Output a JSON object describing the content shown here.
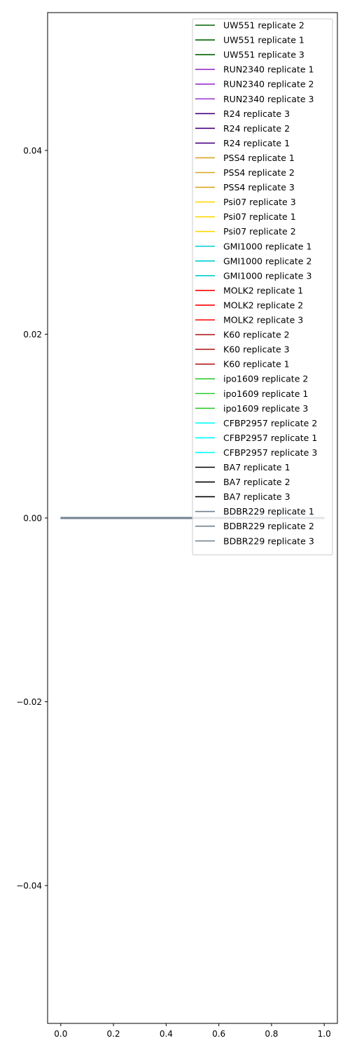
{
  "chart_data": {
    "type": "line",
    "title": "",
    "xlabel": "",
    "ylabel": "",
    "xlim": [
      -0.05,
      1.05
    ],
    "ylim": [
      -0.055,
      0.055
    ],
    "x_ticks": [
      {
        "value": 0.0,
        "label": "0.0"
      },
      {
        "value": 0.2,
        "label": "0.2"
      },
      {
        "value": 0.4,
        "label": "0.4"
      },
      {
        "value": 0.6,
        "label": "0.6"
      },
      {
        "value": 0.8,
        "label": "0.8"
      },
      {
        "value": 1.0,
        "label": "1.0"
      }
    ],
    "y_ticks": [
      {
        "value": -0.04,
        "label": "−0.04"
      },
      {
        "value": -0.02,
        "label": "−0.02"
      },
      {
        "value": 0.0,
        "label": "0.00"
      },
      {
        "value": 0.02,
        "label": "0.02"
      },
      {
        "value": 0.04,
        "label": "0.04"
      }
    ],
    "grid": false,
    "legend_position": "top-right",
    "series": [
      {
        "name": "UW551 replicate 2",
        "color": "#006400",
        "x": [
          0,
          1
        ],
        "y": [
          0,
          0
        ]
      },
      {
        "name": "UW551 replicate 1",
        "color": "#006400",
        "x": [
          0,
          1
        ],
        "y": [
          0,
          0
        ]
      },
      {
        "name": "UW551 replicate 3",
        "color": "#006400",
        "x": [
          0,
          1
        ],
        "y": [
          0,
          0
        ]
      },
      {
        "name": "RUN2340 replicate 1",
        "color": "#9932cc",
        "x": [
          0,
          1
        ],
        "y": [
          0,
          0
        ]
      },
      {
        "name": "RUN2340 replicate 2",
        "color": "#9932cc",
        "x": [
          0,
          1
        ],
        "y": [
          0,
          0
        ]
      },
      {
        "name": "RUN2340 replicate 3",
        "color": "#9932cc",
        "x": [
          0,
          1
        ],
        "y": [
          0,
          0
        ]
      },
      {
        "name": "R24 replicate 3",
        "color": "#4b0082",
        "x": [
          0,
          1
        ],
        "y": [
          0,
          0
        ]
      },
      {
        "name": "R24 replicate 2",
        "color": "#4b0082",
        "x": [
          0,
          1
        ],
        "y": [
          0,
          0
        ]
      },
      {
        "name": "R24 replicate 1",
        "color": "#4b0082",
        "x": [
          0,
          1
        ],
        "y": [
          0,
          0
        ]
      },
      {
        "name": "PSS4 replicate 1",
        "color": "#daa520",
        "x": [
          0,
          1
        ],
        "y": [
          0,
          0
        ]
      },
      {
        "name": "PSS4 replicate 2",
        "color": "#daa520",
        "x": [
          0,
          1
        ],
        "y": [
          0,
          0
        ]
      },
      {
        "name": "PSS4 replicate 3",
        "color": "#daa520",
        "x": [
          0,
          1
        ],
        "y": [
          0,
          0
        ]
      },
      {
        "name": "Psi07 replicate 3",
        "color": "#ffd700",
        "x": [
          0,
          1
        ],
        "y": [
          0,
          0
        ]
      },
      {
        "name": "Psi07 replicate 1",
        "color": "#ffd700",
        "x": [
          0,
          1
        ],
        "y": [
          0,
          0
        ]
      },
      {
        "name": "Psi07 replicate 2",
        "color": "#ffd700",
        "x": [
          0,
          1
        ],
        "y": [
          0,
          0
        ]
      },
      {
        "name": "GMI1000 replicate 1",
        "color": "#00ced1",
        "x": [
          0,
          1
        ],
        "y": [
          0,
          0
        ]
      },
      {
        "name": "GMI1000 replicate 2",
        "color": "#00ced1",
        "x": [
          0,
          1
        ],
        "y": [
          0,
          0
        ]
      },
      {
        "name": "GMI1000 replicate 3",
        "color": "#00ced1",
        "x": [
          0,
          1
        ],
        "y": [
          0,
          0
        ]
      },
      {
        "name": "MOLK2 replicate 1",
        "color": "#ff0000",
        "x": [
          0,
          1
        ],
        "y": [
          0,
          0
        ]
      },
      {
        "name": "MOLK2 replicate 2",
        "color": "#ff0000",
        "x": [
          0,
          1
        ],
        "y": [
          0,
          0
        ]
      },
      {
        "name": "MOLK2 replicate 3",
        "color": "#ff0000",
        "x": [
          0,
          1
        ],
        "y": [
          0,
          0
        ]
      },
      {
        "name": "K60 replicate 2",
        "color": "#b22222",
        "x": [
          0,
          1
        ],
        "y": [
          0,
          0
        ]
      },
      {
        "name": "K60 replicate 3",
        "color": "#b22222",
        "x": [
          0,
          1
        ],
        "y": [
          0,
          0
        ]
      },
      {
        "name": "K60 replicate 1",
        "color": "#b22222",
        "x": [
          0,
          1
        ],
        "y": [
          0,
          0
        ]
      },
      {
        "name": "ipo1609 replicate 2",
        "color": "#32cd32",
        "x": [
          0,
          1
        ],
        "y": [
          0,
          0
        ]
      },
      {
        "name": "ipo1609 replicate 1",
        "color": "#32cd32",
        "x": [
          0,
          1
        ],
        "y": [
          0,
          0
        ]
      },
      {
        "name": "ipo1609 replicate 3",
        "color": "#32cd32",
        "x": [
          0,
          1
        ],
        "y": [
          0,
          0
        ]
      },
      {
        "name": "CFBP2957 replicate 2",
        "color": "#00ffff",
        "x": [
          0,
          1
        ],
        "y": [
          0,
          0
        ]
      },
      {
        "name": "CFBP2957 replicate 1",
        "color": "#00ffff",
        "x": [
          0,
          1
        ],
        "y": [
          0,
          0
        ]
      },
      {
        "name": "CFBP2957 replicate 3",
        "color": "#00ffff",
        "x": [
          0,
          1
        ],
        "y": [
          0,
          0
        ]
      },
      {
        "name": "BA7 replicate 1",
        "color": "#000000",
        "x": [
          0,
          1
        ],
        "y": [
          0,
          0
        ]
      },
      {
        "name": "BA7 replicate 2",
        "color": "#000000",
        "x": [
          0,
          1
        ],
        "y": [
          0,
          0
        ]
      },
      {
        "name": "BA7 replicate 3",
        "color": "#000000",
        "x": [
          0,
          1
        ],
        "y": [
          0,
          0
        ]
      },
      {
        "name": "BDBR229 replicate 1",
        "color": "#708090",
        "x": [
          0,
          1
        ],
        "y": [
          0,
          0
        ]
      },
      {
        "name": "BDBR229 replicate 2",
        "color": "#708090",
        "x": [
          0,
          1
        ],
        "y": [
          0,
          0
        ]
      },
      {
        "name": "BDBR229 replicate 3",
        "color": "#708090",
        "x": [
          0,
          1
        ],
        "y": [
          0,
          0
        ]
      }
    ]
  }
}
